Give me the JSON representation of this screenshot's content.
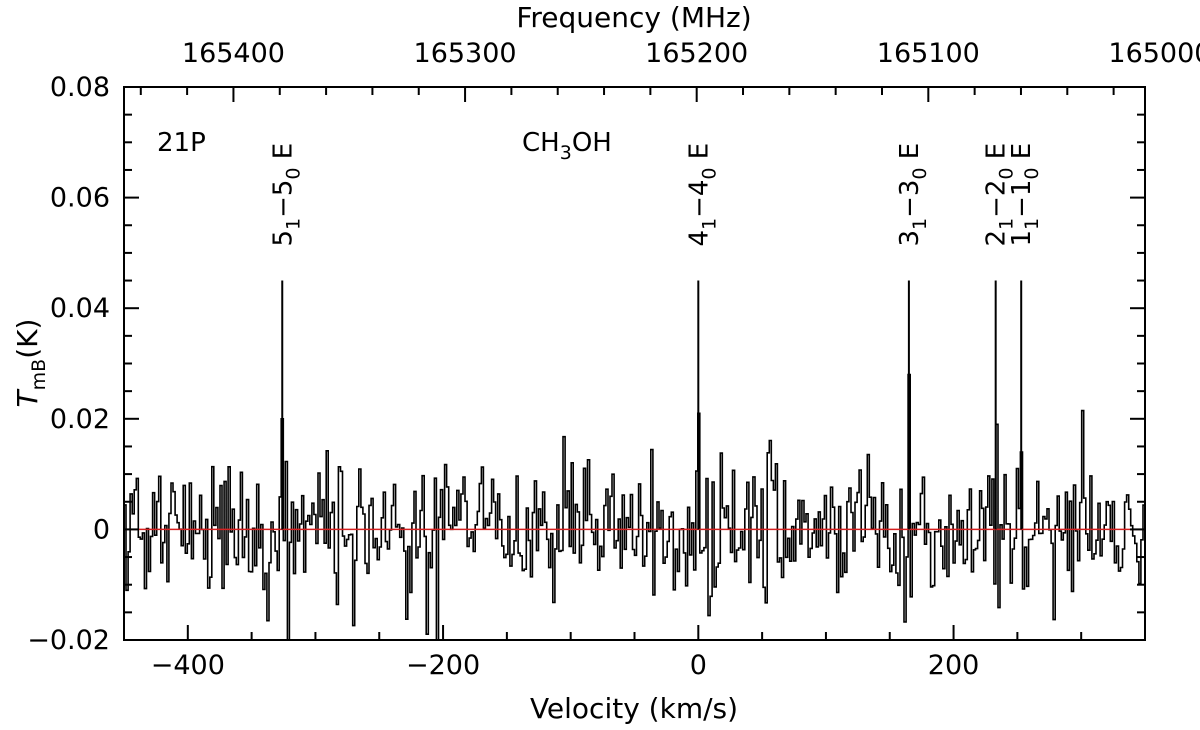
{
  "chart_data": {
    "type": "line",
    "title": "",
    "xlabel": "Velocity (km/s)",
    "x_top_label": "Frequency (MHz)",
    "ylabel": {
      "main": "T",
      "sub": "mB",
      "unit": "(K)"
    },
    "xlim": [
      -450,
      350
    ],
    "ylim": [
      -0.02,
      0.08
    ],
    "x_ticks": [
      -400,
      -200,
      0,
      200
    ],
    "x_tick_labels": [
      "−400",
      "−200",
      "0",
      "200"
    ],
    "y_ticks": [
      -0.02,
      0,
      0.02,
      0.04,
      0.06,
      0.08
    ],
    "y_tick_labels": [
      "−0.02",
      "0",
      "0.02",
      "0.04",
      "0.06",
      "0.08"
    ],
    "top_axis": {
      "freq_at_v0": 165199.3,
      "mhz_per_kms": -0.551,
      "ticks": [
        165400,
        165300,
        165200,
        165100,
        165000
      ],
      "tick_labels": [
        "165400",
        "165300",
        "165200",
        "165100",
        "165000"
      ]
    },
    "grid": false,
    "baseline": {
      "y": 0,
      "color": "#d62020"
    },
    "source_label": "21P",
    "molecule": {
      "base": "CH",
      "sub": "3",
      "rest": "OH"
    },
    "line_markers": [
      {
        "v": -326,
        "top": 0.045,
        "label_parts": [
          [
            "5",
            ""
          ],
          [
            "1",
            "sub"
          ],
          [
            "−5",
            ""
          ],
          [
            "0",
            "sub"
          ],
          [
            " E",
            ""
          ]
        ]
      },
      {
        "v": 0,
        "top": 0.045,
        "label_parts": [
          [
            "4",
            ""
          ],
          [
            "1",
            "sub"
          ],
          [
            "−4",
            ""
          ],
          [
            "0",
            "sub"
          ],
          [
            " E",
            ""
          ]
        ]
      },
      {
        "v": 165,
        "top": 0.045,
        "label_parts": [
          [
            "3",
            ""
          ],
          [
            "1",
            "sub"
          ],
          [
            "−3",
            ""
          ],
          [
            "0",
            "sub"
          ],
          [
            " E",
            ""
          ]
        ]
      },
      {
        "v": 233,
        "top": 0.045,
        "label_parts": [
          [
            "2",
            ""
          ],
          [
            "1",
            "sub"
          ],
          [
            "−2",
            ""
          ],
          [
            "0",
            "sub"
          ],
          [
            " E",
            ""
          ]
        ]
      },
      {
        "v": 253,
        "top": 0.045,
        "label_parts": [
          [
            "1",
            ""
          ],
          [
            "1",
            "sub"
          ],
          [
            "−1",
            ""
          ],
          [
            "0",
            "sub"
          ],
          [
            " E",
            ""
          ]
        ]
      }
    ],
    "series": [
      {
        "style": "histogram",
        "color": "#000000",
        "v_start": -450,
        "v_step": 1.6,
        "noise_sigma": 0.0065,
        "seed": 21,
        "peaks": [
          {
            "v": -326,
            "t": 0.02
          },
          {
            "v": 0,
            "t": 0.021
          },
          {
            "v": 165,
            "t": 0.028
          },
          {
            "v": 233,
            "t": 0.019
          },
          {
            "v": 253,
            "t": 0.014
          }
        ]
      }
    ]
  }
}
